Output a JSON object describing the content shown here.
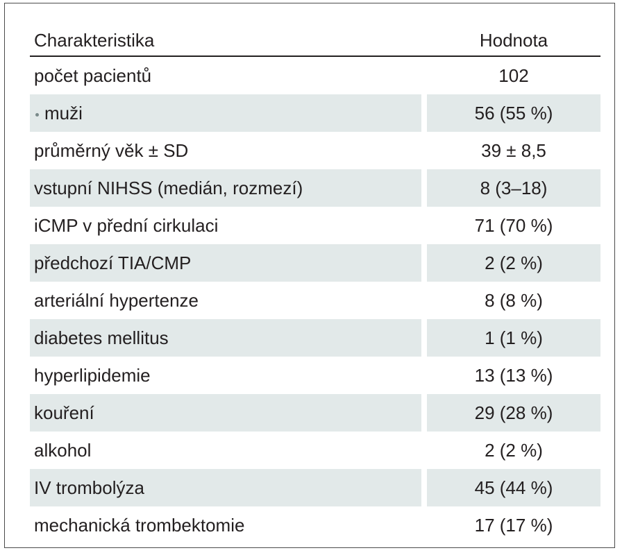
{
  "table": {
    "header": {
      "characteristic": "Charakteristika",
      "value": "Hodnota"
    },
    "rows": [
      {
        "label": "počet pacientů",
        "value": "102",
        "shaded": false,
        "bullet": false
      },
      {
        "label": "muži",
        "value": "56 (55 %)",
        "shaded": true,
        "bullet": true
      },
      {
        "label": "průměrný věk ± SD",
        "value": "39 ± 8,5",
        "shaded": false,
        "bullet": false
      },
      {
        "label": "vstupní NIHSS (medián, rozmezí)",
        "value": "8 (3–18)",
        "shaded": true,
        "bullet": false
      },
      {
        "label": "iCMP v přední cirkulaci",
        "value": "71 (70 %)",
        "shaded": false,
        "bullet": false
      },
      {
        "label": "předchozí TIA/CMP",
        "value": "2 (2 %)",
        "shaded": true,
        "bullet": false
      },
      {
        "label": "arteriální hypertenze",
        "value": "8 (8 %)",
        "shaded": false,
        "bullet": false
      },
      {
        "label": "diabetes mellitus",
        "value": "1 (1 %)",
        "shaded": true,
        "bullet": false
      },
      {
        "label": "hyperlipidemie",
        "value": "13 (13 %)",
        "shaded": false,
        "bullet": false
      },
      {
        "label": "kouření",
        "value": "29 (28 %)",
        "shaded": true,
        "bullet": false
      },
      {
        "label": "alkohol",
        "value": "2 (2 %)",
        "shaded": false,
        "bullet": false
      },
      {
        "label": "IV trombolýza",
        "value": "45 (44 %)",
        "shaded": true,
        "bullet": false
      },
      {
        "label": "mechanická trombektomie",
        "value": "17 (17 %)",
        "shaded": false,
        "bullet": false
      }
    ]
  }
}
